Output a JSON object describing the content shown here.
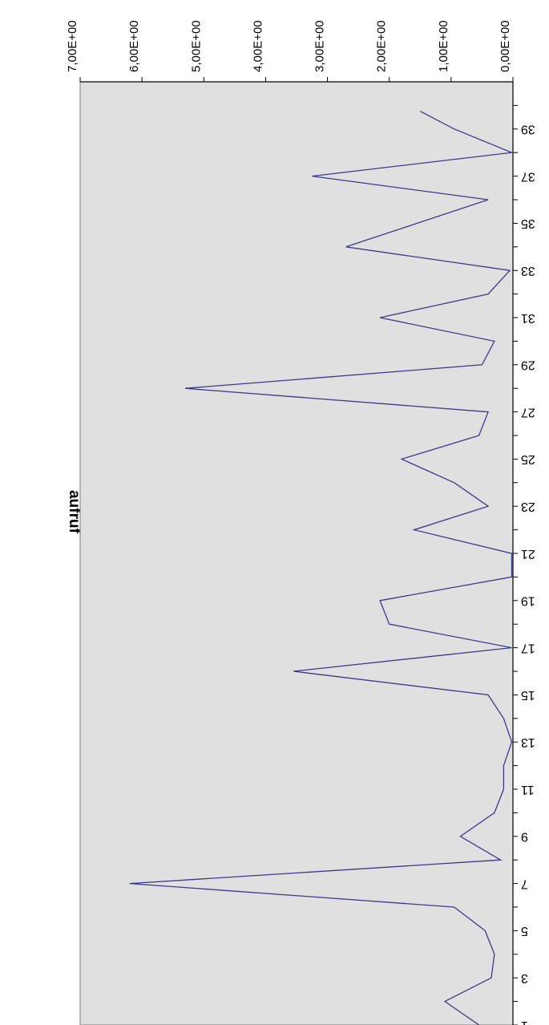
{
  "chart_data": {
    "type": "line",
    "title": "aufruf",
    "xlabel": "",
    "ylabel": "",
    "x_tick_labels": [
      "1",
      "3",
      "5",
      "7",
      "9",
      "11",
      "13",
      "15",
      "17",
      "19",
      "21",
      "23",
      "25",
      "27",
      "29",
      "31",
      "33",
      "35",
      "37",
      "39"
    ],
    "y_tick_labels": [
      "0,00E+00",
      "1,00E+00",
      "2,00E+00",
      "3,00E+00",
      "4,00E+00",
      "5,00E+00",
      "6,00E+00",
      "7,00E+00"
    ],
    "ylim": [
      0,
      7
    ],
    "xlim": [
      1,
      39.75
    ],
    "grid": false,
    "plot_background": "#e0e0e0",
    "series": [
      {
        "color": "#3a3a8c",
        "x": [
          1,
          2,
          3,
          4,
          5,
          6,
          7,
          8,
          9,
          10,
          11,
          12,
          13,
          14,
          15,
          16,
          17,
          18,
          19,
          20,
          21,
          22,
          23,
          24,
          25,
          26,
          27,
          28,
          29,
          30,
          31,
          32,
          33,
          34,
          35,
          36,
          37,
          38,
          39,
          39.75
        ],
        "values": [
          0.55,
          1.1,
          0.35,
          0.3,
          0.45,
          0.95,
          6.2,
          0.2,
          0.85,
          0.3,
          0.15,
          0.15,
          0.02,
          0.15,
          0.4,
          3.55,
          0.02,
          2.0,
          2.15,
          0.02,
          0.02,
          1.6,
          0.4,
          0.95,
          1.8,
          0.55,
          0.4,
          5.3,
          0.5,
          0.3,
          2.15,
          0.4,
          0.05,
          2.7,
          1.55,
          0.4,
          3.25,
          0.02,
          0.95,
          1.5
        ]
      }
    ]
  }
}
